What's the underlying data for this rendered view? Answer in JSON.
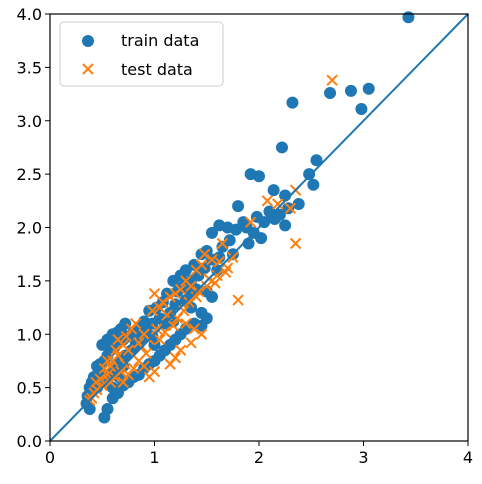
{
  "chart_data": {
    "type": "scatter",
    "xlim": [
      0,
      4
    ],
    "ylim": [
      0,
      4
    ],
    "x_ticks": [
      "0",
      "1",
      "2",
      "3",
      "4"
    ],
    "y_ticks": [
      "0.0",
      "0.5",
      "1.0",
      "1.5",
      "2.0",
      "2.5",
      "3.0",
      "3.5",
      "4.0"
    ],
    "legend_position": "top-left",
    "grid": false,
    "reference_line": {
      "x": [
        0,
        4
      ],
      "y": [
        0,
        4
      ],
      "color": "#1f77b4"
    },
    "series": [
      {
        "name": "train data",
        "marker": "circle",
        "color": "#1f77b4",
        "points": [
          [
            3.43,
            3.97
          ],
          [
            2.32,
            3.17
          ],
          [
            2.68,
            3.26
          ],
          [
            2.88,
            3.28
          ],
          [
            3.05,
            3.3
          ],
          [
            2.98,
            3.11
          ],
          [
            2.55,
            2.63
          ],
          [
            2.52,
            2.4
          ],
          [
            2.22,
            2.75
          ],
          [
            1.92,
            2.5
          ],
          [
            2.0,
            2.48
          ],
          [
            2.14,
            2.35
          ],
          [
            2.25,
            2.3
          ],
          [
            2.48,
            2.5
          ],
          [
            2.38,
            2.22
          ],
          [
            2.28,
            2.18
          ],
          [
            2.1,
            2.15
          ],
          [
            1.98,
            2.1
          ],
          [
            1.85,
            2.05
          ],
          [
            1.8,
            2.2
          ],
          [
            1.88,
            2.0
          ],
          [
            1.95,
            1.95
          ],
          [
            2.05,
            2.05
          ],
          [
            2.15,
            2.08
          ],
          [
            2.25,
            2.02
          ],
          [
            1.7,
            2.0
          ],
          [
            1.62,
            2.02
          ],
          [
            1.55,
            1.95
          ],
          [
            1.72,
            1.88
          ],
          [
            1.78,
            1.98
          ],
          [
            1.65,
            1.82
          ],
          [
            1.5,
            1.78
          ],
          [
            1.45,
            1.75
          ],
          [
            1.55,
            1.7
          ],
          [
            1.6,
            1.6
          ],
          [
            1.48,
            1.62
          ],
          [
            1.38,
            1.65
          ],
          [
            1.42,
            1.55
          ],
          [
            1.3,
            1.6
          ],
          [
            1.35,
            1.5
          ],
          [
            1.28,
            1.45
          ],
          [
            1.4,
            1.42
          ],
          [
            1.5,
            1.4
          ],
          [
            1.55,
            1.35
          ],
          [
            1.25,
            1.55
          ],
          [
            1.18,
            1.5
          ],
          [
            1.22,
            1.4
          ],
          [
            1.12,
            1.38
          ],
          [
            1.3,
            1.32
          ],
          [
            1.45,
            1.2
          ],
          [
            1.5,
            1.15
          ],
          [
            1.35,
            1.25
          ],
          [
            1.2,
            1.28
          ],
          [
            1.08,
            1.3
          ],
          [
            1.15,
            1.2
          ],
          [
            1.02,
            1.25
          ],
          [
            0.95,
            1.22
          ],
          [
            1.05,
            1.15
          ],
          [
            0.98,
            1.1
          ],
          [
            0.9,
            1.12
          ],
          [
            0.85,
            1.05
          ],
          [
            0.92,
            1.02
          ],
          [
            0.8,
            1.02
          ],
          [
            0.75,
            0.98
          ],
          [
            0.7,
            0.95
          ],
          [
            0.65,
            0.92
          ],
          [
            0.62,
            0.88
          ],
          [
            0.58,
            0.85
          ],
          [
            0.55,
            0.8
          ],
          [
            0.52,
            0.75
          ],
          [
            0.48,
            0.72
          ],
          [
            0.45,
            0.7
          ],
          [
            0.55,
            0.95
          ],
          [
            0.6,
            1.0
          ],
          [
            0.68,
            1.05
          ],
          [
            0.72,
            1.1
          ],
          [
            0.65,
            1.02
          ],
          [
            0.5,
            0.9
          ],
          [
            0.47,
            0.65
          ],
          [
            0.42,
            0.6
          ],
          [
            0.4,
            0.55
          ],
          [
            0.38,
            0.5
          ],
          [
            0.36,
            0.42
          ],
          [
            0.35,
            0.35
          ],
          [
            0.38,
            0.3
          ],
          [
            0.52,
            0.22
          ],
          [
            0.55,
            0.3
          ],
          [
            0.6,
            0.4
          ],
          [
            0.65,
            0.45
          ],
          [
            0.7,
            0.52
          ],
          [
            0.75,
            0.55
          ],
          [
            0.8,
            0.6
          ],
          [
            0.85,
            0.62
          ],
          [
            0.9,
            0.68
          ],
          [
            0.95,
            0.72
          ],
          [
            1.0,
            0.75
          ],
          [
            1.05,
            0.8
          ],
          [
            1.1,
            0.85
          ],
          [
            1.15,
            0.9
          ],
          [
            1.2,
            0.95
          ],
          [
            1.25,
            1.0
          ],
          [
            1.3,
            1.05
          ],
          [
            1.38,
            1.1
          ],
          [
            1.45,
            1.08
          ],
          [
            0.72,
            0.8
          ],
          [
            0.78,
            0.85
          ],
          [
            0.82,
            0.9
          ],
          [
            0.88,
            0.95
          ],
          [
            0.62,
            0.7
          ],
          [
            0.68,
            0.75
          ],
          [
            0.58,
            0.62
          ],
          [
            0.5,
            0.55
          ],
          [
            0.45,
            0.5
          ],
          [
            0.66,
            0.6
          ],
          [
            1.1,
            1.1
          ],
          [
            1.18,
            1.12
          ],
          [
            0.98,
            0.98
          ],
          [
            1.35,
            1.38
          ],
          [
            1.62,
            1.72
          ],
          [
            1.75,
            1.75
          ],
          [
            2.02,
            1.9
          ],
          [
            2.2,
            2.12
          ],
          [
            1.9,
            1.85
          ],
          [
            0.6,
            0.5
          ],
          [
            0.7,
            0.7
          ],
          [
            1.0,
            0.9
          ]
        ]
      },
      {
        "name": "test data",
        "marker": "x",
        "color": "#ff7f0e",
        "points": [
          [
            2.7,
            3.38
          ],
          [
            2.35,
            2.35
          ],
          [
            2.35,
            1.85
          ],
          [
            2.3,
            2.18
          ],
          [
            2.08,
            2.25
          ],
          [
            2.18,
            2.22
          ],
          [
            1.92,
            2.05
          ],
          [
            1.8,
            1.32
          ],
          [
            1.65,
            1.85
          ],
          [
            1.55,
            1.7
          ],
          [
            1.48,
            1.75
          ],
          [
            1.45,
            1.65
          ],
          [
            1.4,
            1.6
          ],
          [
            1.52,
            1.52
          ],
          [
            1.35,
            1.45
          ],
          [
            1.42,
            1.4
          ],
          [
            1.3,
            1.5
          ],
          [
            1.25,
            1.42
          ],
          [
            1.2,
            1.38
          ],
          [
            1.15,
            1.35
          ],
          [
            1.08,
            1.3
          ],
          [
            1.0,
            1.38
          ],
          [
            1.05,
            1.25
          ],
          [
            0.98,
            1.22
          ],
          [
            1.12,
            1.18
          ],
          [
            1.22,
            1.15
          ],
          [
            1.3,
            1.1
          ],
          [
            1.38,
            1.05
          ],
          [
            1.45,
            1.0
          ],
          [
            1.35,
            0.92
          ],
          [
            1.25,
            0.85
          ],
          [
            1.2,
            0.78
          ],
          [
            1.15,
            0.72
          ],
          [
            1.0,
            0.65
          ],
          [
            0.95,
            0.6
          ],
          [
            0.9,
            0.7
          ],
          [
            0.85,
            0.75
          ],
          [
            0.8,
            0.8
          ],
          [
            0.75,
            0.85
          ],
          [
            0.7,
            0.9
          ],
          [
            0.65,
            0.95
          ],
          [
            0.78,
            1.05
          ],
          [
            0.82,
            1.1
          ],
          [
            0.9,
            1.0
          ],
          [
            0.95,
            0.95
          ],
          [
            0.88,
            0.88
          ],
          [
            0.72,
            0.72
          ],
          [
            0.68,
            0.65
          ],
          [
            0.62,
            0.6
          ],
          [
            0.58,
            0.55
          ],
          [
            0.55,
            0.62
          ],
          [
            0.5,
            0.52
          ],
          [
            0.45,
            0.48
          ],
          [
            0.42,
            0.45
          ],
          [
            0.4,
            0.4
          ],
          [
            0.38,
            0.38
          ],
          [
            0.6,
            0.75
          ],
          [
            0.65,
            0.8
          ],
          [
            0.58,
            0.7
          ],
          [
            0.52,
            0.68
          ],
          [
            0.48,
            0.58
          ],
          [
            0.75,
            0.62
          ],
          [
            0.8,
            0.68
          ],
          [
            0.85,
            0.92
          ],
          [
            1.1,
            1.02
          ],
          [
            1.18,
            1.08
          ],
          [
            1.28,
            1.22
          ],
          [
            1.33,
            1.3
          ],
          [
            1.4,
            1.35
          ],
          [
            1.5,
            1.45
          ],
          [
            1.6,
            1.55
          ],
          [
            1.7,
            1.62
          ],
          [
            1.75,
            1.72
          ],
          [
            1.62,
            1.68
          ],
          [
            0.7,
            0.55
          ],
          [
            0.92,
            0.82
          ],
          [
            1.05,
            0.95
          ],
          [
            1.02,
            1.05
          ],
          [
            0.73,
            0.98
          ],
          [
            0.63,
            0.85
          ],
          [
            0.55,
            0.75
          ],
          [
            0.44,
            0.55
          ],
          [
            1.58,
            1.48
          ],
          [
            1.68,
            1.58
          ]
        ]
      }
    ]
  }
}
